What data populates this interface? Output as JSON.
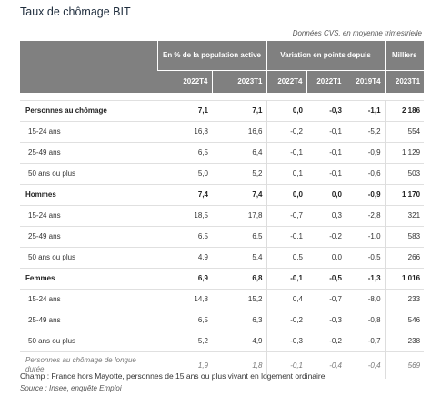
{
  "title": "Taux de chômage BIT",
  "note": "Données CVS, en moyenne trimestrielle",
  "header": {
    "group1": "En % de la population active",
    "group2": "Variation en points depuis",
    "group3": "Milliers",
    "cols": [
      "2022T4",
      "2023T1",
      "2022T4",
      "2022T1",
      "2019T4",
      "2023T1"
    ]
  },
  "rows": [
    {
      "label": "Personnes au chômage",
      "v": [
        "7,1",
        "7,1",
        "0,0",
        "-0,3",
        "-1,1",
        "2 186"
      ]
    },
    {
      "label": "15-24 ans",
      "v": [
        "16,8",
        "16,6",
        "-0,2",
        "-0,1",
        "-5,2",
        "554"
      ]
    },
    {
      "label": "25-49 ans",
      "v": [
        "6,5",
        "6,4",
        "-0,1",
        "-0,1",
        "-0,9",
        "1 129"
      ]
    },
    {
      "label": "50 ans ou plus",
      "v": [
        "5,0",
        "5,2",
        "0,1",
        "-0,1",
        "-0,6",
        "503"
      ]
    },
    {
      "label": "Hommes",
      "v": [
        "7,4",
        "7,4",
        "0,0",
        "0,0",
        "-0,9",
        "1 170"
      ]
    },
    {
      "label": "15-24 ans",
      "v": [
        "18,5",
        "17,8",
        "-0,7",
        "0,3",
        "-2,8",
        "321"
      ]
    },
    {
      "label": "25-49 ans",
      "v": [
        "6,5",
        "6,5",
        "-0,1",
        "-0,2",
        "-1,0",
        "583"
      ]
    },
    {
      "label": "50 ans ou plus",
      "v": [
        "4,9",
        "5,4",
        "0,5",
        "0,0",
        "-0,5",
        "266"
      ]
    },
    {
      "label": "Femmes",
      "v": [
        "6,9",
        "6,8",
        "-0,1",
        "-0,5",
        "-1,3",
        "1 016"
      ]
    },
    {
      "label": "15-24 ans",
      "v": [
        "14,8",
        "15,2",
        "0,4",
        "-0,7",
        "-8,0",
        "233"
      ]
    },
    {
      "label": "25-49 ans",
      "v": [
        "6,5",
        "6,3",
        "-0,2",
        "-0,3",
        "-0,8",
        "546"
      ]
    },
    {
      "label": "50 ans ou plus",
      "v": [
        "5,2",
        "4,9",
        "-0,3",
        "-0,2",
        "-0,7",
        "238"
      ]
    },
    {
      "label": "Personnes au chômage de longue durée",
      "v": [
        "1,9",
        "1,8",
        "-0,1",
        "-0,4",
        "-0,4",
        "569"
      ]
    }
  ],
  "footer": {
    "champ": "Champ : France hors Mayotte, personnes de 15 ans ou plus vivant en logement ordinaire",
    "source": "Source : Insee, enquête Emploi"
  }
}
